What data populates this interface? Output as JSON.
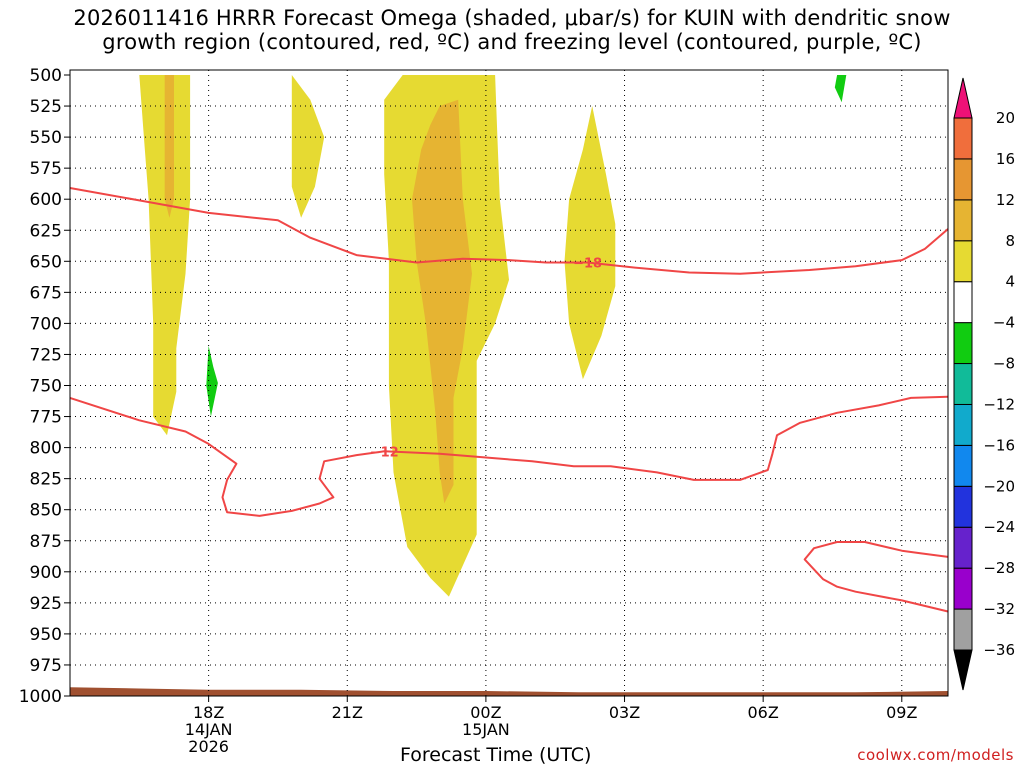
{
  "title": {
    "line1": "2026011416 HRRR Forecast Omega (shaded, μbar/s) for KUIN with dendritic snow",
    "line2": "growth region (contoured, red, ºC) and freezing level (contoured, purple, ºC)"
  },
  "x_axis_title": "Forecast Time (UTC)",
  "credit": "coolwx.com/models",
  "chart_data": {
    "type": "heatmap",
    "x_ticks": [
      {
        "hour": 18,
        "lines": [
          "18Z",
          "14JAN",
          "2026"
        ]
      },
      {
        "hour": 21,
        "lines": [
          "21Z"
        ]
      },
      {
        "hour": 24,
        "lines": [
          "00Z",
          "15JAN"
        ]
      },
      {
        "hour": 27,
        "lines": [
          "03Z"
        ]
      },
      {
        "hour": 30,
        "lines": [
          "06Z"
        ]
      },
      {
        "hour": 33,
        "lines": [
          "09Z"
        ]
      }
    ],
    "xlim": [
      15,
      34
    ],
    "ylim": [
      1000,
      500
    ],
    "y_ticks": [
      500,
      525,
      550,
      575,
      600,
      625,
      650,
      675,
      700,
      725,
      750,
      775,
      800,
      825,
      850,
      875,
      900,
      925,
      950,
      975,
      1000
    ],
    "colorbar": {
      "levels": [
        -36,
        -32,
        -28,
        -24,
        -20,
        -16,
        -12,
        -8,
        -4,
        4,
        8,
        12,
        16,
        20
      ],
      "colors": [
        "#a0a0a0",
        "#9900cc",
        "#6622cc",
        "#2233dd",
        "#1188ee",
        "#11aacc",
        "#11bb99",
        "#11cc11",
        "#ffffff",
        "#e6da32",
        "#e6b432",
        "#e69632",
        "#f06e3c",
        "#f04646"
      ],
      "below_color": "#000000",
      "above_color": "#ee1177"
    },
    "shaded_regions": [
      {
        "value": 4,
        "color": "#e6da32",
        "points": [
          [
            16.5,
            500
          ],
          [
            17.6,
            500
          ],
          [
            17.6,
            600
          ],
          [
            17.5,
            660
          ],
          [
            17.3,
            720
          ],
          [
            17.3,
            755
          ],
          [
            17.1,
            790
          ],
          [
            16.8,
            775
          ],
          [
            16.8,
            700
          ],
          [
            16.7,
            600
          ],
          [
            16.6,
            550
          ]
        ]
      },
      {
        "value": 8,
        "color": "#e6b432",
        "points": [
          [
            17.05,
            500
          ],
          [
            17.25,
            500
          ],
          [
            17.25,
            600
          ],
          [
            17.15,
            615
          ],
          [
            17.05,
            600
          ]
        ]
      },
      {
        "value": 4,
        "color": "#e6da32",
        "points": [
          [
            19.8,
            500
          ],
          [
            20.2,
            520
          ],
          [
            20.5,
            550
          ],
          [
            20.3,
            590
          ],
          [
            20.0,
            615
          ],
          [
            19.8,
            590
          ]
        ]
      },
      {
        "value": 4,
        "color": "#e6da32",
        "points": [
          [
            22.2,
            500
          ],
          [
            24.2,
            500
          ],
          [
            24.25,
            550
          ],
          [
            24.3,
            600
          ],
          [
            24.5,
            665
          ],
          [
            24.2,
            700
          ],
          [
            23.8,
            730
          ],
          [
            23.8,
            760
          ],
          [
            23.8,
            800
          ],
          [
            23.8,
            870
          ],
          [
            23.2,
            920
          ],
          [
            22.8,
            905
          ],
          [
            22.3,
            880
          ],
          [
            22.0,
            820
          ],
          [
            21.9,
            750
          ],
          [
            21.9,
            650
          ],
          [
            21.8,
            580
          ],
          [
            21.8,
            520
          ]
        ]
      },
      {
        "value": 8,
        "color": "#e6b432",
        "points": [
          [
            23.0,
            525
          ],
          [
            23.4,
            520
          ],
          [
            23.5,
            600
          ],
          [
            23.7,
            660
          ],
          [
            23.5,
            720
          ],
          [
            23.3,
            760
          ],
          [
            23.3,
            830
          ],
          [
            23.1,
            845
          ],
          [
            23.0,
            820
          ],
          [
            22.9,
            770
          ],
          [
            22.7,
            700
          ],
          [
            22.5,
            650
          ],
          [
            22.4,
            600
          ],
          [
            22.6,
            560
          ],
          [
            22.8,
            540
          ]
        ]
      },
      {
        "value": 4,
        "color": "#e6da32",
        "points": [
          [
            26.3,
            525
          ],
          [
            26.6,
            580
          ],
          [
            26.8,
            620
          ],
          [
            26.8,
            670
          ],
          [
            26.5,
            710
          ],
          [
            26.1,
            745
          ],
          [
            25.8,
            700
          ],
          [
            25.7,
            650
          ],
          [
            25.8,
            600
          ],
          [
            26.1,
            560
          ]
        ]
      },
      {
        "value": -8,
        "color": "#11cc11",
        "points": [
          [
            18.0,
            718
          ],
          [
            18.1,
            735
          ],
          [
            18.2,
            748
          ],
          [
            18.05,
            775
          ],
          [
            17.95,
            750
          ]
        ]
      },
      {
        "value": -8,
        "color": "#11cc11",
        "points": [
          [
            31.6,
            500
          ],
          [
            31.8,
            500
          ],
          [
            31.7,
            522
          ],
          [
            31.55,
            510
          ]
        ]
      }
    ],
    "ground": {
      "color": "#a05030",
      "points": [
        [
          15,
          993
        ],
        [
          16.5,
          994
        ],
        [
          18,
          995
        ],
        [
          20,
          995
        ],
        [
          22,
          996
        ],
        [
          24,
          996
        ],
        [
          26,
          997
        ],
        [
          28,
          997
        ],
        [
          30,
          997
        ],
        [
          32,
          997
        ],
        [
          34,
          996
        ]
      ]
    },
    "contours": [
      {
        "label": "−18",
        "color": "#f04646",
        "label_at": [
          26.2,
          651
        ],
        "points": [
          [
            15,
            591
          ],
          [
            16.5,
            601
          ],
          [
            18,
            611
          ],
          [
            19.5,
            617
          ],
          [
            20.2,
            631
          ],
          [
            21.2,
            645
          ],
          [
            22.5,
            651
          ],
          [
            23.5,
            648
          ],
          [
            24.5,
            649
          ],
          [
            25.3,
            651
          ],
          [
            26.2,
            651
          ],
          [
            27.2,
            655
          ],
          [
            28.4,
            659
          ],
          [
            29.5,
            660
          ],
          [
            31,
            657
          ],
          [
            32,
            654
          ],
          [
            33,
            649
          ],
          [
            33.5,
            640
          ],
          [
            34,
            624
          ]
        ]
      },
      {
        "label": "−12",
        "color": "#f04646",
        "label_at": [
          21.8,
          803
        ],
        "points": [
          [
            15,
            760
          ],
          [
            16.5,
            778
          ],
          [
            17.5,
            787
          ],
          [
            18,
            797
          ],
          [
            18.6,
            813
          ],
          [
            18.4,
            826
          ],
          [
            18.3,
            840
          ],
          [
            18.4,
            852
          ],
          [
            19.1,
            855
          ],
          [
            19.8,
            851
          ],
          [
            20.4,
            845
          ],
          [
            20.7,
            840
          ],
          [
            20.4,
            825
          ],
          [
            20.5,
            811
          ],
          [
            21.2,
            806
          ],
          [
            21.8,
            803
          ],
          [
            23,
            805
          ],
          [
            24,
            808
          ],
          [
            25,
            811
          ],
          [
            25.9,
            815
          ],
          [
            26.7,
            815
          ],
          [
            27.7,
            820
          ],
          [
            28.5,
            826
          ],
          [
            29.5,
            826
          ],
          [
            30.1,
            818
          ],
          [
            30.2,
            805
          ],
          [
            30.3,
            790
          ],
          [
            30.8,
            780
          ],
          [
            31.6,
            772
          ],
          [
            32.5,
            766
          ],
          [
            33.2,
            760
          ],
          [
            34,
            759
          ]
        ]
      },
      {
        "label": "",
        "color": "#f04646",
        "label_at": null,
        "points": [
          [
            34,
            888
          ],
          [
            33.4,
            885
          ],
          [
            33,
            883
          ],
          [
            32.2,
            876
          ],
          [
            31.6,
            876
          ],
          [
            31.1,
            881
          ],
          [
            30.9,
            890
          ],
          [
            31.3,
            906
          ],
          [
            31.6,
            912
          ],
          [
            32,
            916
          ],
          [
            33,
            923
          ],
          [
            34,
            932
          ]
        ]
      }
    ]
  }
}
